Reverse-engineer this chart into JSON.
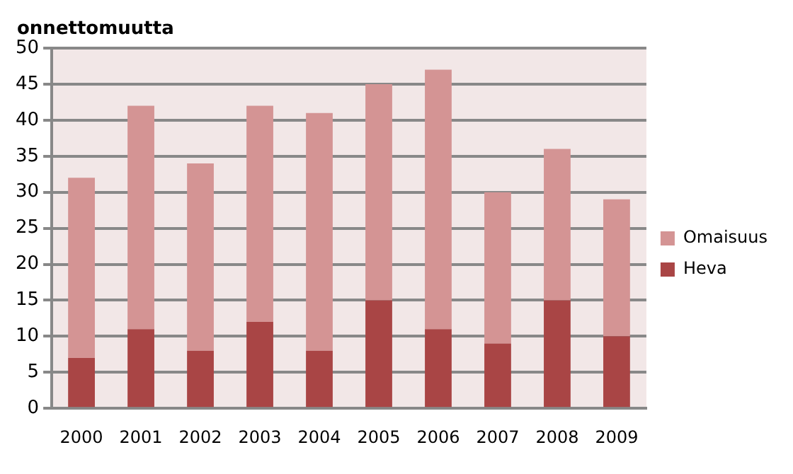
{
  "chart_data": {
    "type": "bar",
    "ylabel": "onnettomuutta",
    "categories": [
      "2000",
      "2001",
      "2002",
      "2003",
      "2004",
      "2005",
      "2006",
      "2007",
      "2008",
      "2009"
    ],
    "stacked": true,
    "series": [
      {
        "name": "Heva",
        "color": "#a94545",
        "values": [
          7,
          11,
          8,
          12,
          8,
          15,
          11,
          9,
          15,
          10
        ]
      },
      {
        "name": "Omaisuus",
        "color": "#d49494",
        "values": [
          25,
          31,
          26,
          30,
          33,
          30,
          36,
          21,
          21,
          19
        ]
      }
    ],
    "ylim": [
      0,
      50
    ],
    "yticks": [
      0,
      5,
      10,
      15,
      20,
      25,
      30,
      35,
      40,
      45,
      50
    ],
    "grid": "y",
    "legend": "right"
  }
}
